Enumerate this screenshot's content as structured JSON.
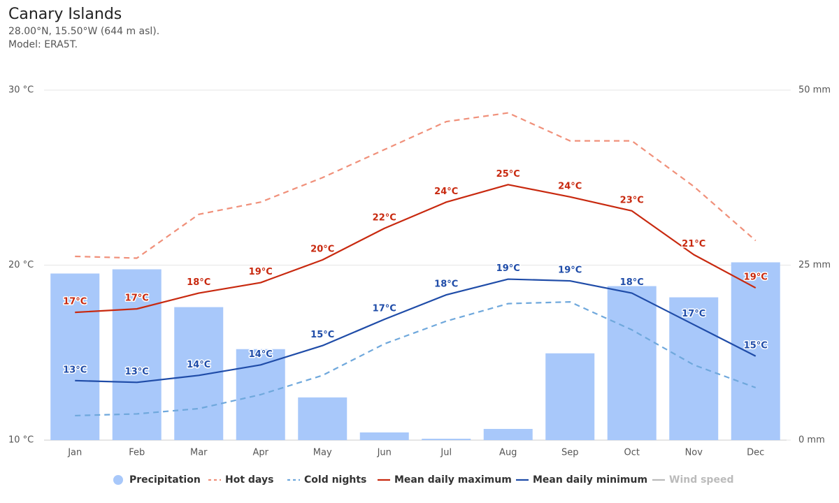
{
  "chart_data": {
    "type": "combo",
    "title": "Canary Islands",
    "subtitle": [
      "28.00°N, 15.50°W (644 m asl).",
      "Model: ERA5T."
    ],
    "categories": [
      "Jan",
      "Feb",
      "Mar",
      "Apr",
      "May",
      "Jun",
      "Jul",
      "Aug",
      "Sep",
      "Oct",
      "Nov",
      "Dec"
    ],
    "ylim": [
      10,
      30
    ],
    "yticks": [
      {
        "value": 10,
        "label": "10 °C"
      },
      {
        "value": 20,
        "label": "20 °C"
      },
      {
        "value": 30,
        "label": "30 °C"
      }
    ],
    "y2lim": [
      0,
      50
    ],
    "y2ticks": [
      {
        "value": 0,
        "label": "0 mm"
      },
      {
        "value": 25,
        "label": "25 mm"
      },
      {
        "value": 50,
        "label": "50 mm"
      }
    ],
    "grid": true,
    "legend": "bottom",
    "series": [
      {
        "name": "Precipitation",
        "type": "bar",
        "axis": "y2",
        "color": "#a8c8fa",
        "values": [
          23.8,
          24.4,
          19.0,
          13.0,
          6.1,
          1.1,
          0.2,
          1.6,
          12.4,
          22.0,
          20.4,
          25.4
        ]
      },
      {
        "name": "Hot days",
        "type": "line",
        "dash": true,
        "color": "#f0907a",
        "values": [
          20.5,
          20.4,
          22.9,
          23.6,
          25.0,
          26.6,
          28.2,
          28.7,
          27.1,
          27.1,
          24.5,
          21.4
        ]
      },
      {
        "name": "Cold nights",
        "type": "line",
        "dash": true,
        "color": "#6fa8dc",
        "values": [
          11.4,
          11.5,
          11.8,
          12.6,
          13.7,
          15.5,
          16.8,
          17.8,
          17.9,
          16.3,
          14.3,
          13.0
        ]
      },
      {
        "name": "Mean daily maximum",
        "type": "line",
        "color": "#c8290f",
        "values": [
          17.3,
          17.5,
          18.4,
          19.0,
          20.3,
          22.1,
          23.6,
          24.6,
          23.9,
          23.1,
          20.6,
          18.7
        ],
        "value_labels": [
          "17°C",
          "17°C",
          "18°C",
          "19°C",
          "20°C",
          "22°C",
          "24°C",
          "25°C",
          "24°C",
          "23°C",
          "21°C",
          "19°C"
        ]
      },
      {
        "name": "Mean daily minimum",
        "type": "line",
        "color": "#1f4ca8",
        "values": [
          13.4,
          13.3,
          13.7,
          14.3,
          15.4,
          16.9,
          18.3,
          19.2,
          19.1,
          18.4,
          16.6,
          14.8
        ],
        "value_labels": [
          "13°C",
          "13°C",
          "14°C",
          "14°C",
          "15°C",
          "17°C",
          "18°C",
          "19°C",
          "19°C",
          "18°C",
          "17°C",
          "15°C"
        ]
      },
      {
        "name": "Wind speed",
        "type": "line",
        "color": "#aaaaaa",
        "visible": false
      }
    ]
  }
}
